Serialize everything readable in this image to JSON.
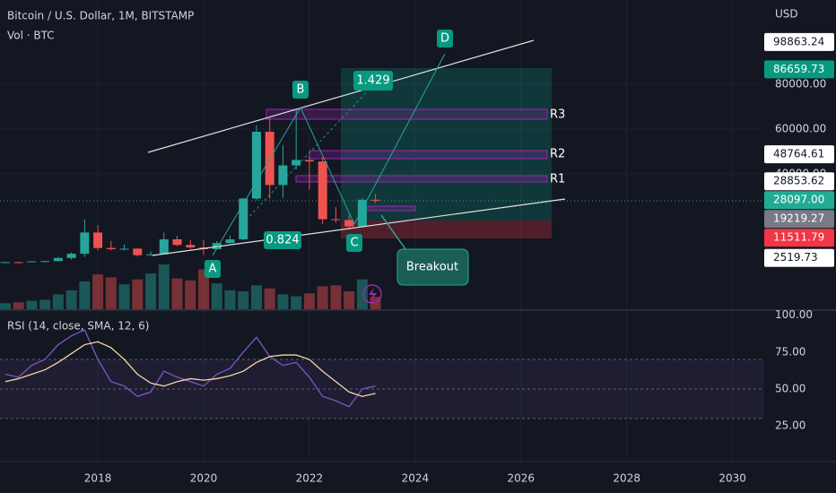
{
  "header": {
    "symbol": "Bitcoin / U.S. Dollar, 1M, BITSTAMP",
    "volume_label": "Vol · BTC",
    "currency": "USD"
  },
  "chart_data": [
    {
      "type": "candlestick",
      "log_scale": false,
      "x": [
        2016.25,
        2016.5,
        2016.75,
        2017.0,
        2017.25,
        2017.5,
        2017.75,
        2018.0,
        2018.25,
        2018.5,
        2018.75,
        2019.0,
        2019.25,
        2019.5,
        2019.75,
        2020.0,
        2020.25,
        2020.5,
        2020.75,
        2021.0,
        2021.25,
        2021.5,
        2021.75,
        2022.0,
        2022.25,
        2022.5,
        2022.75,
        2023.0,
        2023.25
      ],
      "open": [
        420,
        620,
        610,
        960,
        1070,
        2480,
        4360,
        13850,
        6930,
        6390,
        6630,
        3740,
        4100,
        10800,
        8300,
        7190,
        6410,
        9140,
        10780,
        28990,
        58800,
        35040,
        43790,
        46200,
        45540,
        19780,
        19420,
        16540,
        28480
      ],
      "close": [
        620,
        610,
        960,
        1070,
        2480,
        4360,
        13850,
        6930,
        6390,
        6630,
        3740,
        4100,
        10800,
        8300,
        7190,
        6410,
        9140,
        10780,
        28990,
        58800,
        35040,
        43790,
        46200,
        45540,
        19780,
        19420,
        16540,
        28480,
        28100
      ],
      "high": [
        780,
        760,
        980,
        1300,
        2970,
        4980,
        19660,
        17170,
        9990,
        8490,
        6810,
        5350,
        13880,
        12330,
        10540,
        10500,
        10070,
        12480,
        29300,
        61800,
        64900,
        52920,
        69000,
        48240,
        47440,
        25200,
        21480,
        29190,
        31000
      ],
      "low": [
        400,
        480,
        590,
        750,
        1060,
        1830,
        2970,
        5870,
        5780,
        5860,
        3120,
        3370,
        4100,
        7710,
        6500,
        3850,
        6150,
        8900,
        10370,
        28130,
        28800,
        29280,
        42000,
        32950,
        17600,
        18130,
        15480,
        16260,
        26900
      ],
      "volume": [
        120,
        140,
        170,
        190,
        300,
        380,
        560,
        700,
        640,
        500,
        600,
        720,
        900,
        620,
        580,
        800,
        520,
        380,
        360,
        480,
        420,
        300,
        260,
        320,
        460,
        480,
        360,
        600,
        250
      ],
      "up_color": "#26a69a",
      "down_color": "#ef5350",
      "xlim": [
        2016.15,
        2030.6
      ],
      "xticks": [
        2018,
        2020,
        2022,
        2024,
        2026,
        2028,
        2030
      ],
      "ylim": [
        -20400,
        117600
      ],
      "yticks": [
        {
          "value": 40000,
          "label": "40000.00"
        },
        {
          "value": 60000,
          "label": "60000.00"
        },
        {
          "value": 80000,
          "label": "80000.00"
        }
      ],
      "price_markers": [
        {
          "value": 98863.24,
          "label": "98863.24",
          "color": "#ffffff"
        },
        {
          "value": 86659.73,
          "label": "86659.73",
          "color": "#089981"
        },
        {
          "value": 48764.61,
          "label": "48764.61",
          "color": "#ffffff"
        },
        {
          "value": 28853.62,
          "label": "28853.62",
          "color": "#ffffff"
        },
        {
          "value": 28097,
          "label": "28097.00",
          "color": "#22ab94"
        },
        {
          "value": 19219.27,
          "label": "19219.27",
          "color": "#787b86"
        },
        {
          "value": 11511.79,
          "label": "11511.79",
          "color": "#f23645"
        },
        {
          "value": 2519.73,
          "label": "2519.73",
          "color": "#ffffff"
        }
      ],
      "annotations": {
        "points": [
          "A",
          "B",
          "C",
          "D"
        ],
        "ratios": [
          "1.429",
          "0.824"
        ],
        "levels": [
          "R1",
          "R2",
          "R3"
        ],
        "callout": "Breakout"
      }
    },
    {
      "type": "line",
      "title": "RSI (14, close, SMA, 12, 6)",
      "series": [
        {
          "name": "RSI",
          "color": "#7e57c2",
          "values": [
            60,
            58,
            66,
            70,
            80,
            86,
            90,
            70,
            55,
            52,
            45,
            48,
            62,
            58,
            55,
            52,
            60,
            64,
            75,
            85,
            72,
            66,
            68,
            58,
            45,
            42,
            38,
            50,
            52
          ]
        },
        {
          "name": "SMA",
          "color": "#f5d7a1",
          "values": [
            55,
            57,
            60,
            63,
            68,
            74,
            80,
            82,
            78,
            70,
            60,
            54,
            52,
            55,
            57,
            56,
            57,
            59,
            62,
            68,
            72,
            73,
            73,
            70,
            62,
            55,
            48,
            45,
            47
          ]
        }
      ],
      "levels": [
        30,
        50,
        70
      ],
      "ylim": [
        16,
        104
      ],
      "yticks": [
        {
          "value": 25,
          "label": "25.00"
        },
        {
          "value": 50,
          "label": "50.00"
        },
        {
          "value": 75,
          "label": "75.00"
        },
        {
          "value": 100,
          "label": "100.00"
        }
      ]
    }
  ]
}
